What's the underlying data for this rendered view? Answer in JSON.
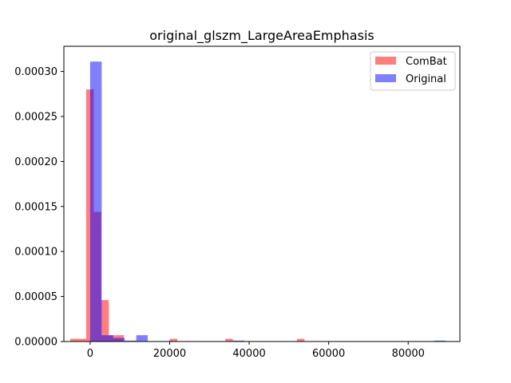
{
  "chart_data": {
    "type": "bar",
    "title": "original_glszm_LargeAreaEmphasis",
    "xlabel": "",
    "ylabel": "",
    "xlim": [
      -6600,
      93000
    ],
    "ylim": [
      0,
      0.000328
    ],
    "x_ticks": [
      0,
      20000,
      40000,
      60000,
      80000
    ],
    "x_tick_labels": [
      "0",
      "20000",
      "40000",
      "60000",
      "80000"
    ],
    "y_ticks": [
      0,
      5e-05,
      0.0001,
      0.00015,
      0.0002,
      0.00025,
      0.0003
    ],
    "y_tick_labels": [
      "0.00000",
      "0.00005",
      "0.00010",
      "0.00015",
      "0.00020",
      "0.00025",
      "0.00030"
    ],
    "grid": false,
    "legend_position": "top-right",
    "series": [
      {
        "name": "ComBat",
        "color": "#ff0000",
        "alpha": 0.5,
        "bins": [
          {
            "x0": -5000,
            "x1": -3000,
            "value": 3e-06
          },
          {
            "x0": -3000,
            "x1": -1000,
            "value": 3e-06
          },
          {
            "x0": -1000,
            "x1": 900,
            "value": 0.00028
          },
          {
            "x0": 900,
            "x1": 2800,
            "value": 0.000144
          },
          {
            "x0": 2800,
            "x1": 4700,
            "value": 4.6e-05
          },
          {
            "x0": 4700,
            "x1": 6600,
            "value": 7e-06
          },
          {
            "x0": 6600,
            "x1": 8500,
            "value": 7e-06
          },
          {
            "x0": 20000,
            "x1": 21900,
            "value": 3e-06
          },
          {
            "x0": 34000,
            "x1": 35900,
            "value": 3e-06
          },
          {
            "x0": 52000,
            "x1": 53900,
            "value": 3e-06
          }
        ]
      },
      {
        "name": "Original",
        "color": "#0000ff",
        "alpha": 0.5,
        "bins": [
          {
            "x0": 0,
            "x1": 2900,
            "value": 0.000311
          },
          {
            "x0": 2900,
            "x1": 5800,
            "value": 7e-06
          },
          {
            "x0": 5800,
            "x1": 8700,
            "value": 4e-06
          },
          {
            "x0": 8700,
            "x1": 11600,
            "value": 1e-06
          },
          {
            "x0": 11600,
            "x1": 14500,
            "value": 7e-06
          },
          {
            "x0": 35900,
            "x1": 38800,
            "value": 1e-06
          },
          {
            "x0": 86500,
            "x1": 89400,
            "value": 1e-06
          }
        ]
      }
    ]
  }
}
